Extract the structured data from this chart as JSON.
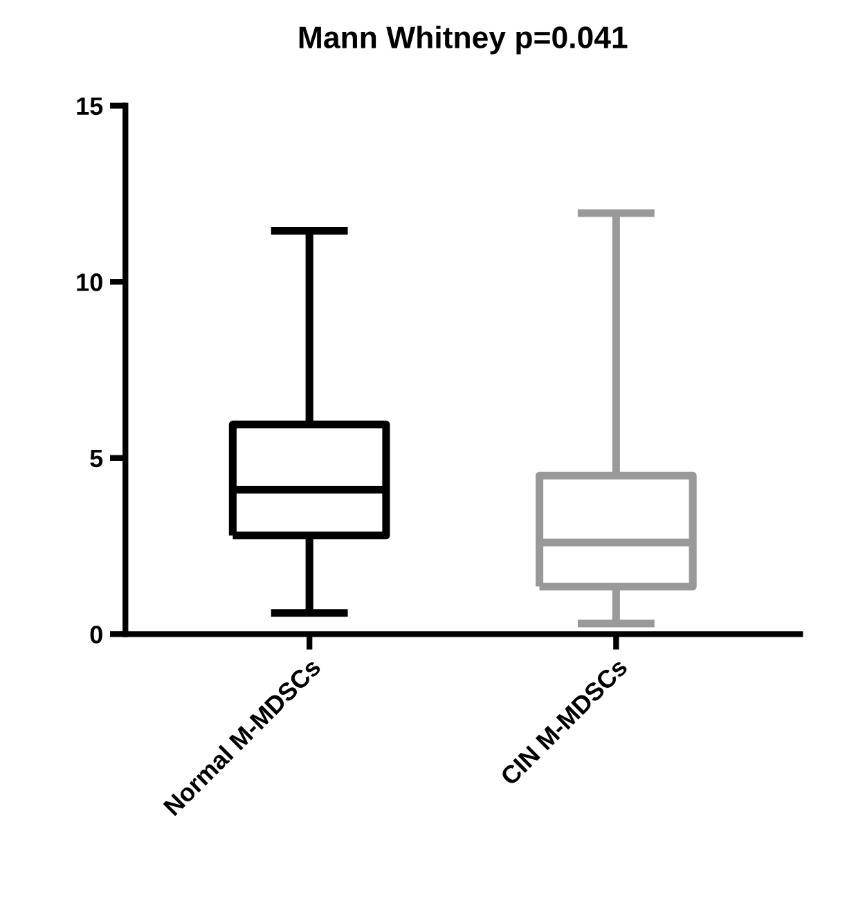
{
  "chart_data": {
    "type": "box",
    "title": "Mann Whitney p=0.041",
    "categories": [
      "Normal M-MDSCs",
      "CIN M-MDSCs"
    ],
    "boxes": [
      {
        "low": 0.6,
        "q1": 2.8,
        "median": 4.1,
        "q3": 5.95,
        "high": 11.45
      },
      {
        "low": 0.3,
        "q1": 1.35,
        "median": 2.6,
        "q3": 4.5,
        "high": 11.95
      }
    ],
    "colors": [
      "#000000",
      "#999999"
    ],
    "ylim": [
      0,
      15
    ],
    "yticks": [
      0,
      5,
      10,
      15
    ],
    "grid": false
  }
}
